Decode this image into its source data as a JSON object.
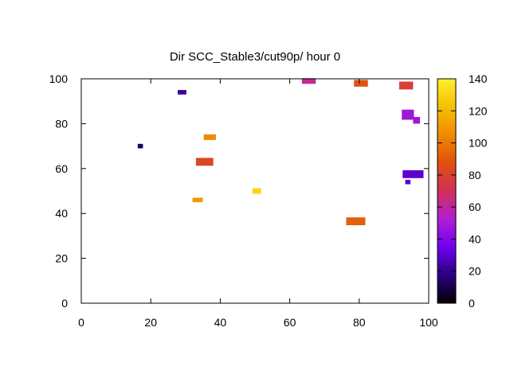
{
  "chart_data": {
    "type": "heatmap",
    "title": "Dir SCC_Stable3/cut90p/ hour 0",
    "xlim": [
      0,
      100
    ],
    "ylim": [
      0,
      100
    ],
    "x_ticks": [
      0,
      20,
      40,
      60,
      80,
      100
    ],
    "y_ticks": [
      0,
      20,
      40,
      60,
      80,
      100
    ],
    "colorbar": {
      "range": [
        0,
        140
      ],
      "ticks": [
        0,
        20,
        40,
        60,
        80,
        100,
        120,
        140
      ],
      "palette": [
        "#000000",
        "#2a0080",
        "#6f00f0",
        "#b020d0",
        "#d0305a",
        "#e05010",
        "#f08a00",
        "#f5c000",
        "#ffee30"
      ]
    },
    "cells": [
      {
        "x": 17,
        "y": 70,
        "w": 1.5,
        "h": 2,
        "value": 12
      },
      {
        "x": 29,
        "y": 94,
        "w": 2.5,
        "h": 2,
        "value": 22
      },
      {
        "x": 37,
        "y": 74,
        "w": 3.5,
        "h": 2.5,
        "value": 105
      },
      {
        "x": 35.5,
        "y": 63,
        "w": 5,
        "h": 3.5,
        "value": 82
      },
      {
        "x": 33.5,
        "y": 46,
        "w": 3,
        "h": 2,
        "value": 110
      },
      {
        "x": 50.5,
        "y": 50,
        "w": 2.5,
        "h": 2.5,
        "value": 130
      },
      {
        "x": 65.5,
        "y": 99,
        "w": 4,
        "h": 2.5,
        "value": 62
      },
      {
        "x": 80.5,
        "y": 98,
        "w": 4,
        "h": 3,
        "value": 88
      },
      {
        "x": 93.5,
        "y": 97,
        "w": 4,
        "h": 3.5,
        "value": 78
      },
      {
        "x": 94,
        "y": 84,
        "w": 3.5,
        "h": 4.5,
        "value": 48
      },
      {
        "x": 96.5,
        "y": 81.5,
        "w": 2,
        "h": 3,
        "value": 48
      },
      {
        "x": 79,
        "y": 36.5,
        "w": 5.5,
        "h": 3.5,
        "value": 92
      },
      {
        "x": 95.5,
        "y": 57.5,
        "w": 6,
        "h": 3.5,
        "value": 30
      },
      {
        "x": 94,
        "y": 54,
        "w": 1.5,
        "h": 2,
        "value": 30
      }
    ]
  }
}
